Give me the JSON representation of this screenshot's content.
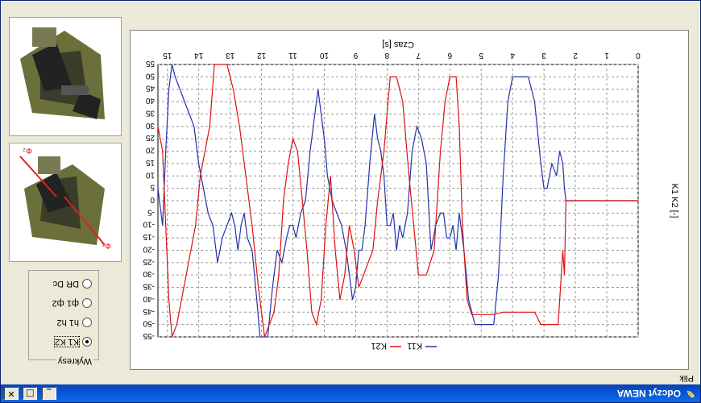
{
  "window": {
    "title": "Odczyt NEWA",
    "min": "_",
    "max": "□",
    "close": "✕"
  },
  "menu": {
    "label": "Plik"
  },
  "group": {
    "legend": "Wykresy",
    "options": [
      {
        "label": "K1 K2",
        "selected": true
      },
      {
        "label": "h1 h2",
        "selected": false
      },
      {
        "label": "ф1 ф2",
        "selected": false
      },
      {
        "label": "DR Dc",
        "selected": false
      }
    ]
  },
  "chart_data": {
    "type": "line",
    "xlabel": "Czas [s]",
    "ylabel": "K1 K2 [-]",
    "x_ticks": [
      "0",
      "1",
      "2",
      "3",
      "4",
      "5",
      "6",
      "7",
      "8",
      "9",
      "10",
      "11",
      "12",
      "13",
      "14",
      "15"
    ],
    "y_ticks": [
      "-55",
      "-50",
      "-45",
      "-40",
      "-35",
      "-30",
      "-25",
      "-20",
      "-15",
      "-10",
      "-5",
      "0",
      "5",
      "10",
      "15",
      "20",
      "25",
      "30",
      "35",
      "40",
      "45",
      "50",
      "55"
    ],
    "ylim": [
      -55,
      55
    ],
    "xlim": [
      0,
      15.3
    ],
    "grid": true,
    "legend_position": "bottom",
    "series": [
      {
        "name": "K11",
        "color": "#2233aa",
        "x": [
          0,
          2.3,
          2.35,
          2.4,
          2.5,
          2.6,
          2.75,
          2.9,
          3.0,
          3.1,
          3.3,
          3.5,
          3.7,
          4.0,
          4.15,
          4.3,
          4.45,
          4.6,
          4.75,
          4.9,
          5.0,
          5.2,
          5.4,
          5.55,
          5.7,
          5.8,
          5.9,
          6.0,
          6.1,
          6.2,
          6.3,
          6.45,
          6.6,
          6.75,
          6.9,
          7.05,
          7.2,
          7.35,
          7.5,
          7.6,
          7.7,
          7.8,
          7.9,
          8.0,
          8.1,
          8.2,
          8.3,
          8.4,
          8.55,
          8.7,
          8.8,
          8.9,
          9.0,
          9.1,
          9.2,
          9.3,
          9.45,
          9.6,
          9.75,
          9.9,
          10.0,
          10.1,
          10.2,
          10.3,
          10.45,
          10.6,
          10.75,
          10.9,
          11.0,
          11.1,
          11.2,
          11.35,
          11.5,
          11.65,
          11.8,
          11.95,
          12.05,
          12.15,
          12.3,
          12.45,
          12.55,
          12.65,
          12.75,
          12.85,
          12.95,
          13.1,
          13.25,
          13.4,
          13.55,
          13.7,
          13.85,
          14.0,
          14.15,
          14.3,
          14.45,
          14.6,
          14.75,
          14.85,
          14.95,
          15.05,
          15.15,
          15.3
        ],
        "y": [
          0,
          0,
          5,
          15,
          20,
          10,
          15,
          5,
          5,
          15,
          40,
          50,
          50,
          50,
          40,
          10,
          -30,
          -50,
          -50,
          -50,
          -50,
          -50,
          -40,
          -20,
          -5,
          -20,
          -10,
          -15,
          -15,
          -5,
          -5,
          -10,
          -20,
          15,
          25,
          30,
          20,
          -5,
          -15,
          -10,
          -20,
          -5,
          -10,
          -10,
          10,
          20,
          25,
          35,
          15,
          -10,
          -20,
          -20,
          -35,
          -40,
          -30,
          -20,
          -10,
          -5,
          0,
          10,
          25,
          35,
          45,
          35,
          20,
          0,
          -5,
          -15,
          -10,
          -10,
          -15,
          -25,
          -20,
          -35,
          -55,
          -55,
          -55,
          -40,
          -20,
          -15,
          -5,
          -10,
          -20,
          -10,
          -5,
          -10,
          -15,
          -25,
          -10,
          -5,
          5,
          15,
          30,
          35,
          40,
          45,
          50,
          55,
          45,
          20,
          -10,
          5
        ]
      },
      {
        "name": "K21",
        "color": "#dd1111",
        "x": [
          0,
          2.3,
          2.35,
          2.4,
          2.45,
          2.55,
          2.7,
          2.8,
          2.95,
          3.1,
          3.3,
          3.6,
          3.9,
          4.3,
          4.6,
          4.9,
          5.1,
          5.3,
          5.45,
          5.6,
          5.7,
          5.8,
          5.9,
          6.0,
          6.15,
          6.3,
          6.5,
          6.75,
          7.0,
          7.15,
          7.3,
          7.5,
          7.7,
          7.9,
          8.1,
          8.3,
          8.45,
          8.6,
          8.75,
          8.9,
          9.05,
          9.2,
          9.35,
          9.5,
          9.65,
          9.8,
          9.95,
          10.1,
          10.25,
          10.4,
          10.55,
          10.7,
          10.85,
          11.0,
          11.15,
          11.3,
          11.45,
          11.6,
          11.75,
          11.9,
          12.1,
          12.3,
          12.5,
          12.7,
          12.9,
          13.1,
          13.3,
          13.5,
          13.65,
          13.8,
          13.95,
          14.1,
          14.25,
          14.4,
          14.55,
          14.7,
          14.85,
          14.95,
          15.05,
          15.15,
          15.3
        ],
        "y": [
          0,
          0,
          -30,
          -20,
          -30,
          -50,
          -50,
          -50,
          -50,
          -50,
          -45,
          -45,
          -45,
          -45,
          -46,
          -46,
          -46,
          -46,
          -40,
          -10,
          30,
          50,
          50,
          50,
          40,
          20,
          -20,
          -30,
          -30,
          -10,
          10,
          40,
          50,
          50,
          20,
          0,
          -20,
          -25,
          -30,
          -35,
          -20,
          -10,
          -30,
          -40,
          -20,
          10,
          -10,
          -40,
          -50,
          -45,
          -20,
          0,
          20,
          25,
          15,
          0,
          -30,
          -45,
          -50,
          -55,
          -35,
          -10,
          10,
          30,
          45,
          55,
          55,
          55,
          30,
          20,
          10,
          -10,
          -20,
          -30,
          -40,
          -50,
          -55,
          -40,
          -10,
          20,
          30
        ]
      }
    ]
  }
}
